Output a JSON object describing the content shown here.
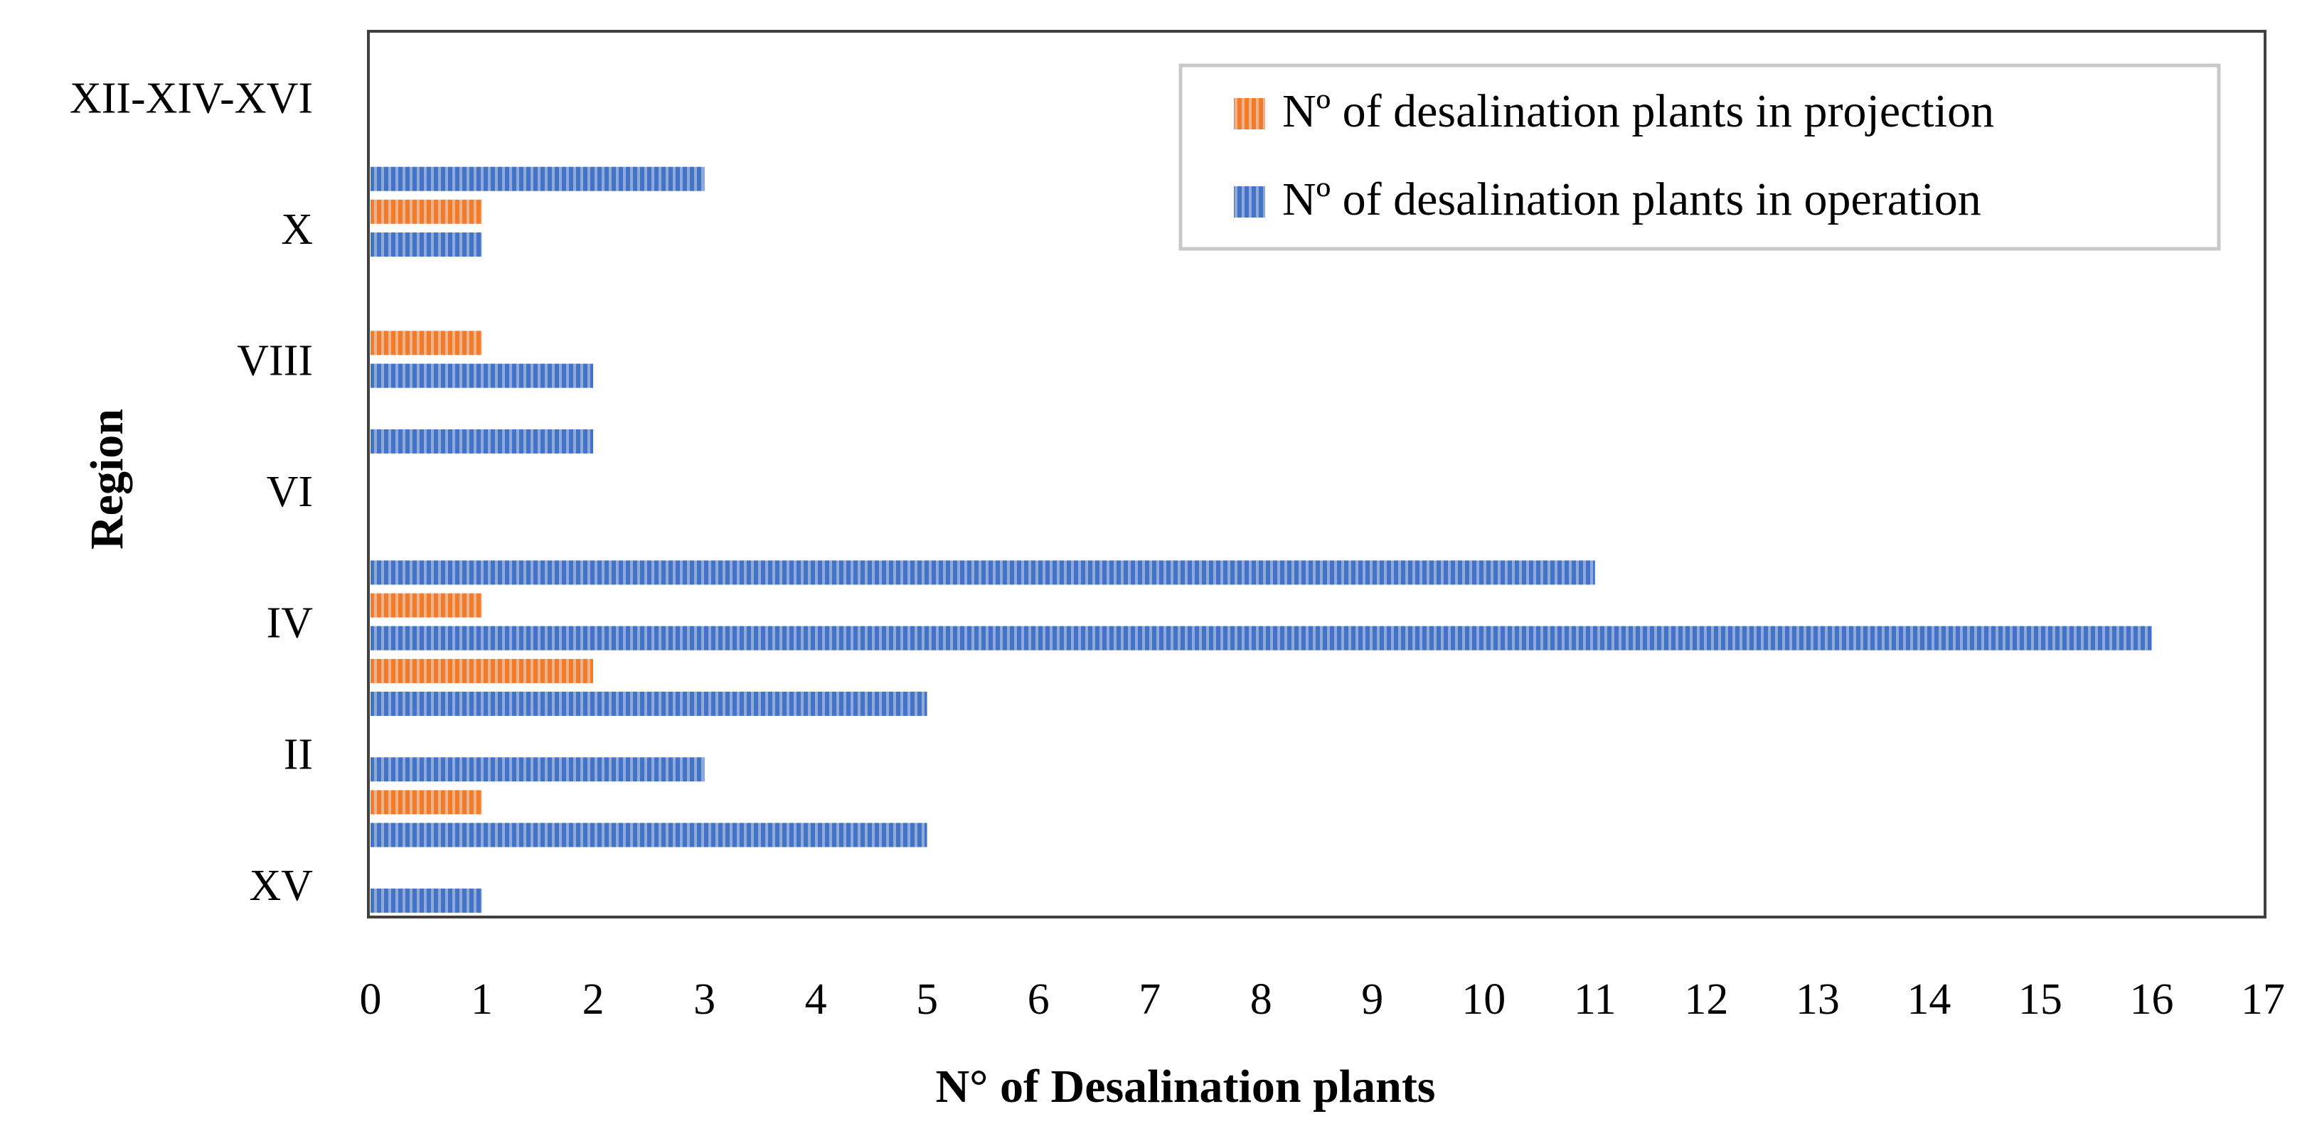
{
  "chart_data": {
    "type": "bar",
    "orientation": "horizontal",
    "title": "",
    "xlabel": "N° of Desalination plants",
    "ylabel": "Region",
    "xlim": [
      0,
      17
    ],
    "x_ticks": [
      "0",
      "1",
      "2",
      "3",
      "4",
      "5",
      "6",
      "7",
      "8",
      "9",
      "10",
      "11",
      "12",
      "13",
      "14",
      "15",
      "16",
      "17"
    ],
    "category_labels": [
      "XV",
      "II",
      "IV",
      "VI",
      "VIII",
      "X",
      "XII-XIV-XVI"
    ],
    "legend_position": "top-right",
    "grid": false,
    "series": [
      {
        "name": "Nº of desalination plants in projection",
        "color": "#ED7D31",
        "pattern": "vertical-stripes"
      },
      {
        "name": "Nº of desalination plants in operation",
        "color": "#4472C4",
        "pattern": "vertical-stripes"
      }
    ],
    "bars": [
      {
        "slot": 0,
        "series": 1,
        "value": 1
      },
      {
        "slot": 2,
        "series": 1,
        "value": 5
      },
      {
        "slot": 3,
        "series": 0,
        "value": 1
      },
      {
        "slot": 4,
        "series": 1,
        "value": 3
      },
      {
        "slot": 6,
        "series": 1,
        "value": 5
      },
      {
        "slot": 7,
        "series": 0,
        "value": 2
      },
      {
        "slot": 8,
        "series": 1,
        "value": 16
      },
      {
        "slot": 9,
        "series": 0,
        "value": 1
      },
      {
        "slot": 10,
        "series": 1,
        "value": 11
      },
      {
        "slot": 14,
        "series": 1,
        "value": 2
      },
      {
        "slot": 16,
        "series": 1,
        "value": 2
      },
      {
        "slot": 17,
        "series": 0,
        "value": 1
      },
      {
        "slot": 20,
        "series": 1,
        "value": 1
      },
      {
        "slot": 21,
        "series": 0,
        "value": 1
      },
      {
        "slot": 22,
        "series": 1,
        "value": 3
      }
    ]
  }
}
